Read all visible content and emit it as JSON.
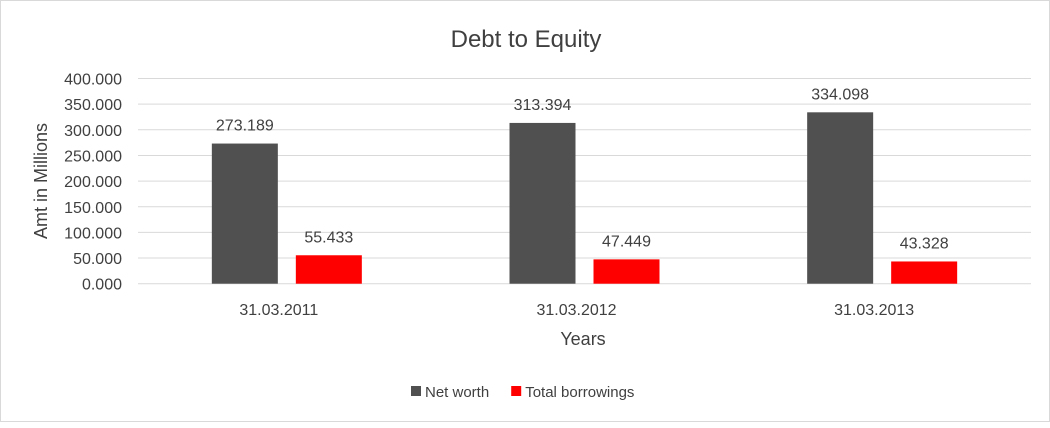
{
  "chart_data": {
    "type": "bar",
    "title": "Debt to Equity",
    "xlabel": "Years",
    "ylabel": "Amt in Millions",
    "categories": [
      "31.03.2011",
      "31.03.2012",
      "31.03.2013"
    ],
    "series": [
      {
        "name": "Net worth",
        "values": [
          273.189,
          313.394,
          334.098
        ],
        "color": "#505050"
      },
      {
        "name": "Total borrowings",
        "values": [
          55.433,
          47.449,
          43.328
        ],
        "color": "#ff0000"
      }
    ],
    "data_labels": [
      [
        "273.189",
        "313.394",
        "334.098"
      ],
      [
        "55.433",
        "47.449",
        "43.328"
      ]
    ],
    "ylim": [
      0,
      400
    ],
    "yticks": [
      "0.000",
      "50.000",
      "100.000",
      "150.000",
      "200.000",
      "250.000",
      "300.000",
      "350.000",
      "400.000"
    ],
    "grid": true,
    "legend_position": "bottom"
  }
}
